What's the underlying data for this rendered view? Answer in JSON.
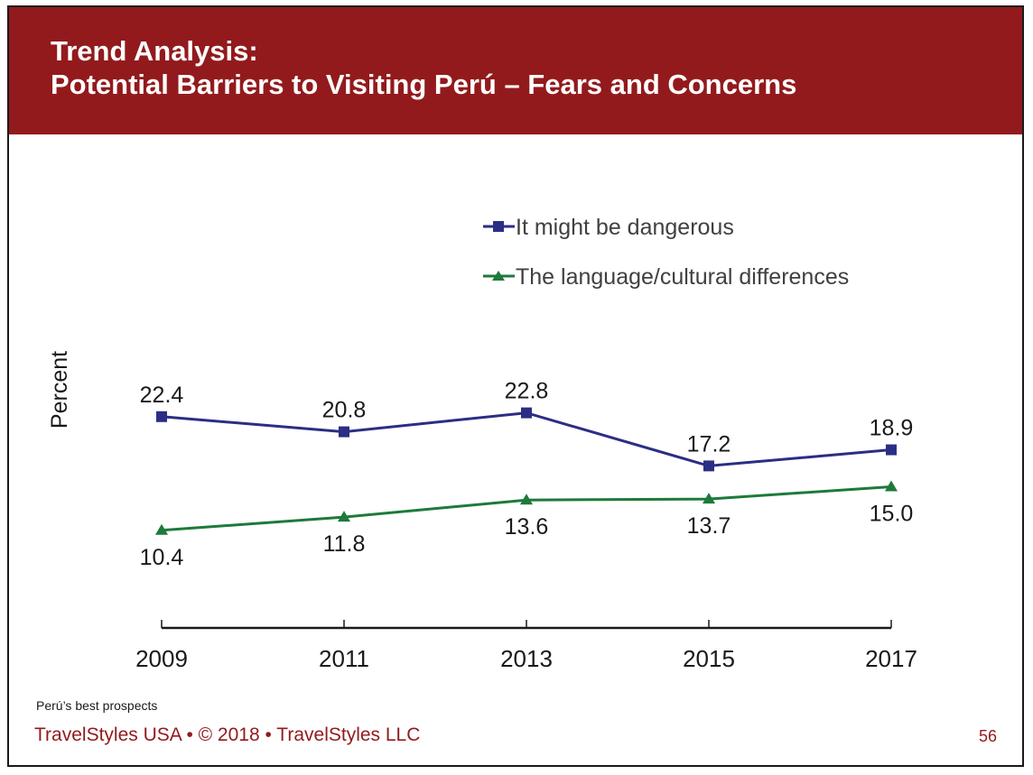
{
  "slide": {
    "title_line1": "Trend Analysis:",
    "title_line2": "Potential Barriers to Visiting Perú – Fears and Concerns",
    "note": "Perú’s best prospects",
    "footer": "TravelStyles USA • © 2018 • TravelStyles LLC",
    "page_number": "56",
    "colors": {
      "banner": "#921a1d",
      "footer_text": "#921a1d",
      "series1": "#2b2e83",
      "series2": "#1d7a3a"
    }
  },
  "chart_data": {
    "type": "line",
    "title": "",
    "xlabel": "",
    "ylabel": "Percent",
    "x": [
      "2009",
      "2011",
      "2013",
      "2015",
      "2017"
    ],
    "ylim": [
      0,
      30
    ],
    "grid": false,
    "legend_position": "top-right",
    "series": [
      {
        "name": "It might be dangerous",
        "marker": "square",
        "color": "#2b2e83",
        "values": [
          22.4,
          20.8,
          22.8,
          17.2,
          18.9
        ],
        "labels": [
          "22.4",
          "20.8",
          "22.8",
          "17.2",
          "18.9"
        ],
        "label_position": "above"
      },
      {
        "name": "The language/cultural differences",
        "marker": "triangle",
        "color": "#1d7a3a",
        "values": [
          10.4,
          11.8,
          13.6,
          13.7,
          15.0
        ],
        "labels": [
          "10.4",
          "11.8",
          "13.6",
          "13.7",
          "15.0"
        ],
        "label_position": "below"
      }
    ]
  }
}
